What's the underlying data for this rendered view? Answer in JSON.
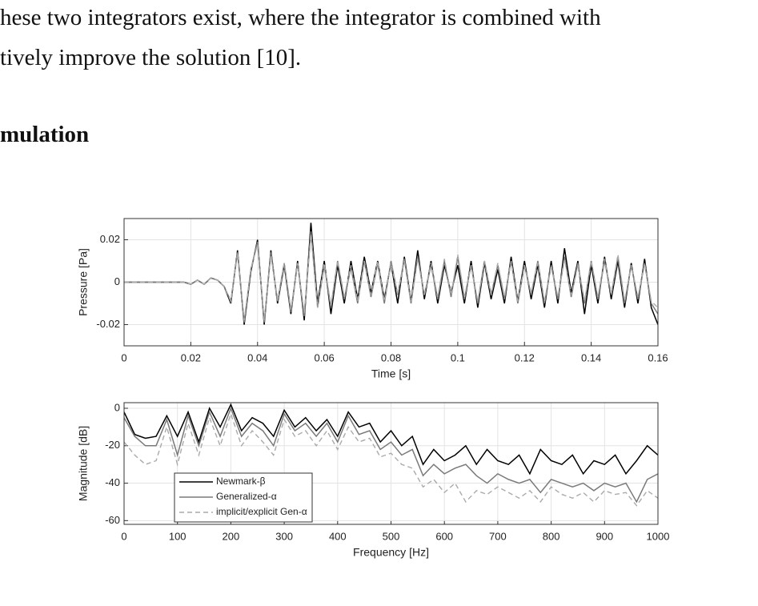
{
  "text": {
    "lines": [
      "hese two integrators exist, where the integrator is combined with",
      "tively improve the solution [10]."
    ],
    "heading": "mulation"
  },
  "chart_data": [
    {
      "type": "line",
      "xlabel": "Time [s]",
      "ylabel": "Pressure [Pa]",
      "x": [
        0,
        0.002,
        0.004,
        0.006,
        0.008,
        0.01,
        0.012,
        0.014,
        0.016,
        0.018,
        0.02,
        0.022,
        0.024,
        0.026,
        0.028,
        0.03,
        0.032,
        0.034,
        0.036,
        0.038,
        0.04,
        0.042,
        0.044,
        0.046,
        0.048,
        0.05,
        0.052,
        0.054,
        0.056,
        0.058,
        0.06,
        0.062,
        0.064,
        0.066,
        0.068,
        0.07,
        0.072,
        0.074,
        0.076,
        0.078,
        0.08,
        0.082,
        0.084,
        0.086,
        0.088,
        0.09,
        0.092,
        0.094,
        0.096,
        0.098,
        0.1,
        0.102,
        0.104,
        0.106,
        0.108,
        0.11,
        0.112,
        0.114,
        0.116,
        0.118,
        0.12,
        0.122,
        0.124,
        0.126,
        0.128,
        0.13,
        0.132,
        0.134,
        0.136,
        0.138,
        0.14,
        0.142,
        0.144,
        0.146,
        0.148,
        0.15,
        0.152,
        0.154,
        0.156,
        0.158,
        0.16
      ],
      "series": [
        {
          "color": "#000000",
          "dash": false,
          "values": [
            0,
            0,
            0,
            0,
            0,
            0,
            0,
            0,
            0,
            0,
            -0.001,
            0.001,
            -0.001,
            0.002,
            0.001,
            -0.002,
            -0.01,
            0.015,
            -0.02,
            0.005,
            0.02,
            -0.02,
            0.015,
            -0.01,
            0.008,
            -0.015,
            0.01,
            -0.018,
            0.028,
            -0.01,
            0.01,
            -0.015,
            0.008,
            -0.01,
            0.01,
            -0.008,
            0.012,
            -0.005,
            0.01,
            -0.008,
            0.009,
            -0.01,
            0.012,
            -0.009,
            0.015,
            -0.008,
            0.01,
            -0.01,
            0.008,
            -0.005,
            0.008,
            -0.01,
            0.01,
            -0.012,
            0.009,
            -0.008,
            0.006,
            -0.01,
            0.012,
            -0.009,
            0.01,
            -0.008,
            0.008,
            -0.012,
            0.01,
            -0.01,
            0.016,
            -0.005,
            0.01,
            -0.015,
            0.008,
            -0.01,
            0.012,
            -0.008,
            0.01,
            -0.012,
            0.009,
            -0.01,
            0.011,
            -0.012,
            -0.02
          ]
        },
        {
          "color": "#7a7a7a",
          "dash": false,
          "values": [
            0,
            0,
            0,
            0,
            0,
            0,
            0,
            0,
            0,
            0,
            -0.001,
            0.001,
            -0.001,
            0.002,
            0.001,
            -0.002,
            -0.009,
            0.014,
            -0.019,
            0.006,
            0.019,
            -0.019,
            0.014,
            -0.009,
            0.009,
            -0.014,
            0.009,
            -0.016,
            0.024,
            -0.012,
            0.008,
            -0.012,
            0.01,
            -0.008,
            0.007,
            -0.01,
            0.01,
            -0.007,
            0.009,
            -0.01,
            0.01,
            -0.006,
            0.011,
            -0.01,
            0.012,
            -0.006,
            0.008,
            -0.008,
            0.01,
            -0.007,
            0.012,
            -0.008,
            0.008,
            -0.01,
            0.01,
            -0.006,
            0.008,
            -0.008,
            0.01,
            -0.01,
            0.008,
            -0.006,
            0.01,
            -0.01,
            0.008,
            -0.008,
            0.012,
            -0.007,
            0.009,
            -0.01,
            0.01,
            -0.008,
            0.01,
            -0.006,
            0.012,
            -0.01,
            0.008,
            -0.008,
            0.009,
            -0.01,
            -0.015
          ]
        },
        {
          "color": "#aaaaaa",
          "dash": true,
          "values": [
            0,
            0,
            0,
            0,
            0,
            0,
            0,
            0,
            0,
            0,
            -0.001,
            0.001,
            -0.001,
            0.002,
            0.001,
            -0.002,
            -0.009,
            0.014,
            -0.018,
            0.006,
            0.018,
            -0.018,
            0.013,
            -0.009,
            0.009,
            -0.013,
            0.009,
            -0.015,
            0.023,
            -0.012,
            0.009,
            -0.011,
            0.01,
            -0.007,
            0.008,
            -0.009,
            0.01,
            -0.006,
            0.01,
            -0.009,
            0.009,
            -0.006,
            0.01,
            -0.009,
            0.011,
            -0.006,
            0.009,
            -0.007,
            0.011,
            -0.006,
            0.013,
            -0.007,
            0.008,
            -0.009,
            0.01,
            -0.006,
            0.009,
            -0.007,
            0.01,
            -0.009,
            0.008,
            -0.005,
            0.009,
            -0.009,
            0.008,
            -0.007,
            0.011,
            -0.006,
            0.008,
            -0.009,
            0.01,
            -0.007,
            0.011,
            -0.006,
            0.013,
            -0.009,
            0.008,
            -0.007,
            0.009,
            -0.009,
            -0.012
          ]
        }
      ],
      "xlim": [
        0,
        0.16
      ],
      "ylim": [
        -0.03,
        0.03
      ],
      "xticks": [
        0,
        0.02,
        0.04,
        0.06,
        0.08,
        0.1,
        0.12,
        0.14,
        0.16
      ],
      "yticks": [
        -0.02,
        0,
        0.02
      ],
      "grid": true
    },
    {
      "type": "line",
      "xlabel": "Frequency [Hz]",
      "ylabel": "Magnitude [dB]",
      "x": [
        0,
        20,
        40,
        60,
        80,
        100,
        120,
        140,
        160,
        180,
        200,
        220,
        240,
        260,
        280,
        300,
        320,
        340,
        360,
        380,
        400,
        420,
        440,
        460,
        480,
        500,
        520,
        540,
        560,
        580,
        600,
        620,
        640,
        660,
        680,
        700,
        720,
        740,
        760,
        780,
        800,
        820,
        840,
        860,
        880,
        900,
        920,
        940,
        960,
        980,
        1000
      ],
      "series": [
        {
          "name": "Newmark-β",
          "color": "#000000",
          "dash": false,
          "values": [
            -2,
            -14,
            -16,
            -15,
            -4,
            -15,
            -2,
            -18,
            0,
            -10,
            2,
            -12,
            -5,
            -8,
            -15,
            -1,
            -10,
            -5,
            -12,
            -6,
            -15,
            -2,
            -10,
            -8,
            -18,
            -12,
            -20,
            -15,
            -30,
            -22,
            -28,
            -25,
            -20,
            -30,
            -22,
            -28,
            -30,
            -25,
            -35,
            -22,
            -28,
            -30,
            -25,
            -35,
            -28,
            -30,
            -25,
            -35,
            -28,
            -20,
            -25
          ]
        },
        {
          "name": "Generalized-α",
          "color": "#7a7a7a",
          "dash": false,
          "values": [
            -5,
            -15,
            -20,
            -20,
            -6,
            -25,
            -4,
            -20,
            -2,
            -15,
            0,
            -15,
            -8,
            -12,
            -20,
            -3,
            -12,
            -8,
            -15,
            -8,
            -18,
            -4,
            -14,
            -12,
            -22,
            -18,
            -25,
            -22,
            -36,
            -30,
            -35,
            -32,
            -30,
            -36,
            -40,
            -35,
            -38,
            -40,
            -38,
            -45,
            -38,
            -40,
            -42,
            -40,
            -44,
            -40,
            -42,
            -40,
            -50,
            -38,
            -35
          ]
        },
        {
          "name": "implicit/explicit Gen-α",
          "color": "#aaaaaa",
          "dash": true,
          "values": [
            -18,
            -25,
            -30,
            -28,
            -10,
            -30,
            -8,
            -25,
            -5,
            -20,
            -3,
            -20,
            -12,
            -18,
            -25,
            -6,
            -15,
            -12,
            -20,
            -12,
            -22,
            -10,
            -18,
            -16,
            -26,
            -24,
            -30,
            -32,
            -42,
            -38,
            -45,
            -40,
            -50,
            -44,
            -46,
            -42,
            -45,
            -48,
            -44,
            -50,
            -42,
            -46,
            -48,
            -45,
            -50,
            -44,
            -46,
            -45,
            -52,
            -44,
            -48
          ]
        }
      ],
      "xlim": [
        0,
        1000
      ],
      "ylim": [
        -62,
        3
      ],
      "xticks": [
        0,
        100,
        200,
        300,
        400,
        500,
        600,
        700,
        800,
        900,
        1000
      ],
      "yticks": [
        -60,
        -40,
        -20,
        0
      ],
      "grid": true,
      "legend": "lower left"
    }
  ]
}
